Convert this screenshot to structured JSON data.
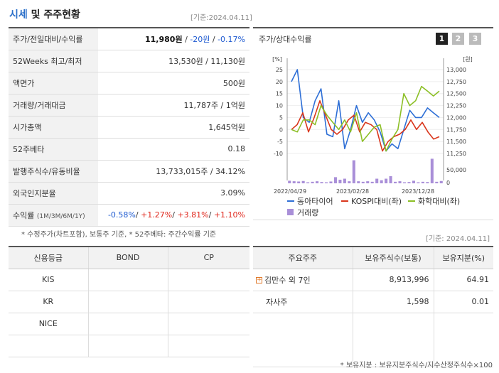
{
  "header": {
    "title_blue": "시세",
    "title_rest": " 및 주주현황",
    "date": "[기준:2024.04.11]"
  },
  "info_rows": [
    {
      "label": "주가/전일대비/수익률",
      "v1": "11,980원",
      "v2": "-20원",
      "v3": "-0.17%"
    },
    {
      "label": "52Weeks 최고/최저",
      "value": "13,530원 / 11,130원"
    },
    {
      "label": "액면가",
      "value": "500원"
    },
    {
      "label": "거래량/거래대금",
      "value": "11,787주 / 1억원"
    },
    {
      "label": "시가총액",
      "value": "1,645억원"
    },
    {
      "label": "52주베타",
      "value": "0.18"
    },
    {
      "label": "발행주식수/유동비율",
      "value": "13,733,015주 / 34.12%"
    },
    {
      "label": "외국인지분율",
      "value": "3.09%"
    },
    {
      "label": "수익률",
      "label_sub": "(1M/3M/6M/1Y)",
      "r1": "-0.58%",
      "r2": "+1.27%",
      "r3": "+3.81%",
      "r4": "+1.10%"
    }
  ],
  "note1": "* 수정주가(차트포함), 보통주 기준, * 52주베타: 주간수익률 기준",
  "chart": {
    "title": "주가/상대수익률",
    "tabs": [
      "1",
      "2",
      "3"
    ],
    "left_unit": "[%]",
    "right_unit": "[원]",
    "left_ticks": [
      "25",
      "20",
      "15",
      "10",
      "5",
      "0",
      "-5",
      "-10"
    ],
    "right_ticks": [
      "13,000",
      "12,750",
      "12,500",
      "12,250",
      "12,000",
      "11,750",
      "11,500",
      "11,250"
    ],
    "vol_ticks": [
      "50,000",
      "0"
    ],
    "x_labels": [
      "2022/04/29",
      "2023/02/28",
      "2023/12/28"
    ],
    "legend": [
      "동아타이어",
      "KOSPI대비(좌)",
      "화학대비(좌)",
      "거래량"
    ],
    "colors": {
      "stock": "#2e6fd6",
      "kospi": "#d9361c",
      "chem": "#8cbf26",
      "volume": "#a98fd8"
    }
  },
  "chart_data": {
    "type": "line",
    "ylim_left": [
      -10,
      25
    ],
    "ylim_right": [
      11250,
      13000
    ],
    "series": [
      {
        "name": "동아타이어",
        "axis": "left",
        "values": [
          20,
          25,
          5,
          3,
          12,
          17,
          -2,
          -3,
          12,
          -8,
          0,
          10,
          3,
          7,
          4,
          -1,
          -9,
          -6,
          -8,
          0,
          8,
          5,
          5,
          9,
          7,
          5
        ]
      },
      {
        "name": "KOSPI대비(좌)",
        "axis": "left",
        "values": [
          0,
          2,
          7,
          -1,
          5,
          12,
          6,
          0,
          -2,
          0,
          4,
          6,
          -1,
          3,
          2,
          0,
          -9,
          -5,
          -3,
          -2,
          0,
          4,
          0,
          3,
          -1,
          -4,
          -3
        ]
      },
      {
        "name": "화학대비(좌)",
        "axis": "left",
        "values": [
          0,
          -1,
          4,
          4,
          2,
          10,
          6,
          3,
          0,
          4,
          -1,
          7,
          -5,
          -2,
          1,
          2,
          -9,
          -4,
          0,
          15,
          10,
          12,
          18,
          16,
          14,
          16
        ]
      }
    ],
    "volume": [
      5000,
      4000,
      3500,
      4500,
      2000,
      3000,
      4000,
      2500,
      2000,
      3500,
      12000,
      7000,
      9000,
      4000,
      45000,
      4000,
      3000,
      4000,
      3000,
      9000,
      6000,
      9000,
      14000,
      3000,
      4000,
      2000,
      2500,
      5000,
      2000,
      3000,
      2500,
      48000,
      3000,
      4500
    ]
  },
  "date2": "[기준: 2024.04.11]",
  "credit": {
    "headers": [
      "신용등급",
      "BOND",
      "CP"
    ],
    "rows": [
      [
        "KIS",
        "",
        ""
      ],
      [
        "KR",
        "",
        ""
      ],
      [
        "NICE",
        "",
        ""
      ]
    ]
  },
  "holders": {
    "headers": [
      "주요주주",
      "보유주식수(보통)",
      "보유지분(%)"
    ],
    "rows": [
      {
        "name": "김만수 외 7인",
        "shares": "8,913,996",
        "pct": "64.91"
      },
      {
        "name": "자사주",
        "shares": "1,598",
        "pct": "0.01"
      }
    ]
  },
  "note2": "* 보유지분 : 보유지분주식수/지수산정주식수×100"
}
